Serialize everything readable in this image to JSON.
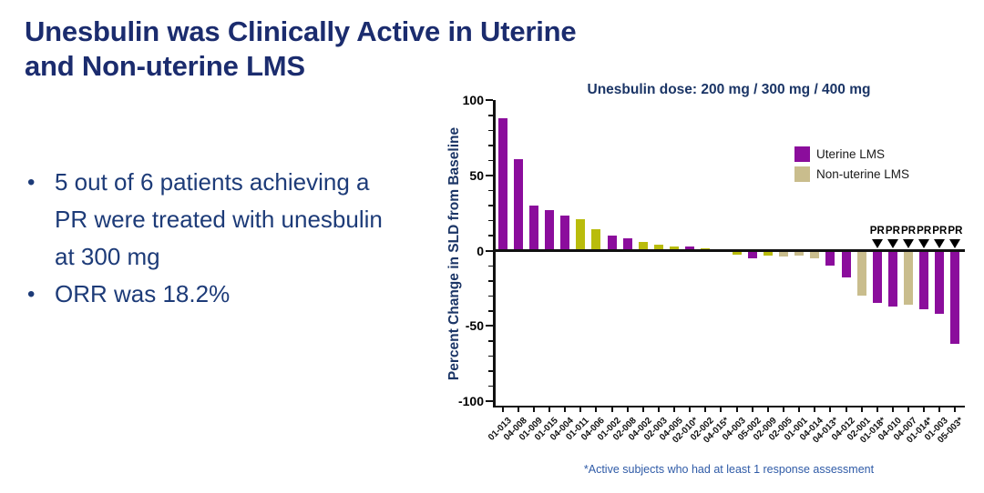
{
  "slide": {
    "title_lines": [
      "Unesbulin was Clinically Active in Uterine",
      "and Non-uterine LMS"
    ],
    "bullet_char": "•",
    "bullets": [
      "5 out of 6 patients achieving a PR were treated with unesbulin at 300 mg",
      "ORR was 18.2%"
    ],
    "footnote": "*Active subjects who had at least 1 response assessment"
  },
  "colors": {
    "title_navy": "#1B2C6E",
    "bullet_navy": "#1D3B78",
    "chart_navy": "#1B3566",
    "footnote_blue": "#2F5BA7",
    "axis_black": "#111111",
    "purple": "#8B0D9C",
    "olive": "#B9BC0C",
    "tan": "#C9BD8D"
  },
  "chart_data": {
    "type": "bar",
    "subtype": "waterfall",
    "title": "Unesbulin dose: 200 mg / 300 mg / 400 mg",
    "xlabel": "",
    "ylabel": "Percent Change in SLD from Baseline",
    "ylim": [
      -100,
      100
    ],
    "yticks": [
      100,
      50,
      0,
      -50,
      -100
    ],
    "ytick_minor_step": 10,
    "grid": false,
    "legend_position": "upper right",
    "legend": [
      {
        "label": "Uterine LMS",
        "color_key": "purple"
      },
      {
        "label": "Non-uterine LMS",
        "color_key": "tan"
      }
    ],
    "pr_label": "PR",
    "categories": [
      "01-013",
      "04-008",
      "01-009",
      "01-015",
      "04-004",
      "01-011",
      "04-006",
      "01-002",
      "02-008",
      "04-002",
      "02-003",
      "04-005",
      "02-010*",
      "02-002",
      "04-015*",
      "04-003",
      "05-002",
      "02-009",
      "02-005",
      "01-001",
      "04-014",
      "04-013*",
      "04-012",
      "02-001",
      "01-018*",
      "04-010",
      "04-007",
      "01-014*",
      "01-003",
      "05-003*"
    ],
    "values": [
      88,
      61,
      30,
      27,
      23,
      21,
      14,
      10,
      8,
      6,
      4,
      3,
      2.5,
      1.5,
      0,
      -3,
      -5,
      -3.5,
      -4,
      -3.5,
      -5,
      -10,
      -18,
      -30,
      -35,
      -37,
      -36,
      -39,
      -42,
      -62
    ],
    "bar_color_keys": [
      "purple",
      "purple",
      "purple",
      "purple",
      "purple",
      "olive",
      "olive",
      "purple",
      "purple",
      "olive",
      "olive",
      "olive",
      "purple",
      "olive",
      "tan",
      "olive",
      "purple",
      "olive",
      "tan",
      "tan",
      "tan",
      "purple",
      "purple",
      "tan",
      "purple",
      "purple",
      "tan",
      "purple",
      "purple",
      "purple"
    ],
    "pr_flags": [
      false,
      false,
      false,
      false,
      false,
      false,
      false,
      false,
      false,
      false,
      false,
      false,
      false,
      false,
      false,
      false,
      false,
      false,
      false,
      false,
      false,
      false,
      false,
      false,
      true,
      true,
      true,
      true,
      true,
      true
    ]
  }
}
